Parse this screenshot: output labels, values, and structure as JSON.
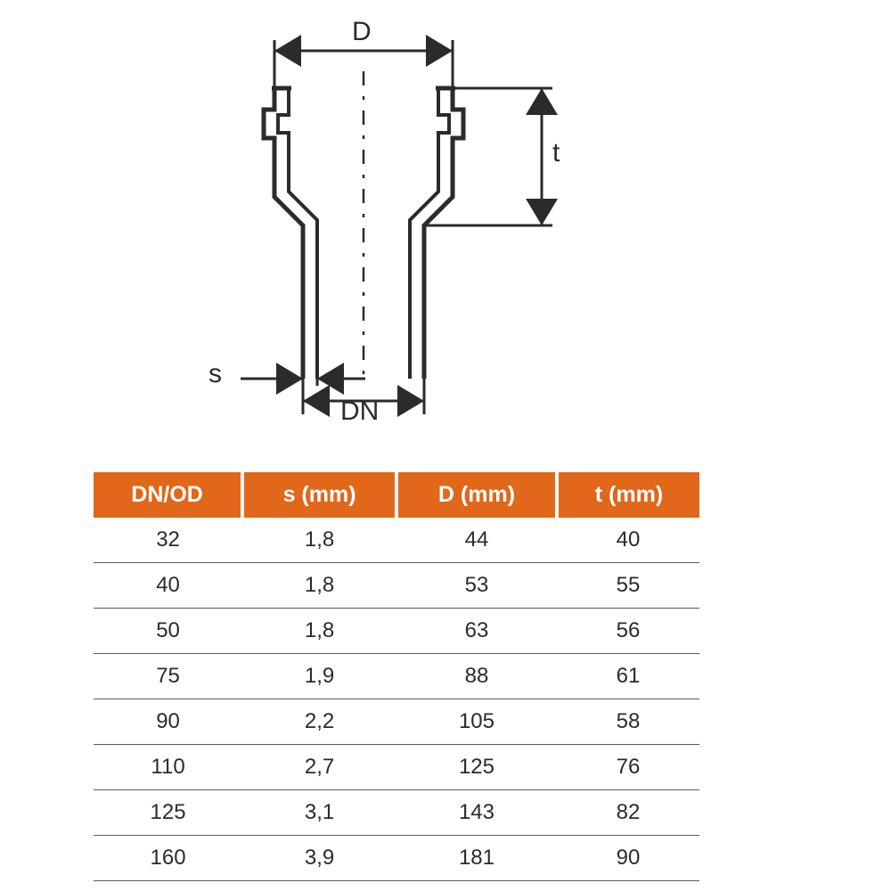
{
  "diagram": {
    "labels": {
      "D": "D",
      "t": "t",
      "s": "s",
      "DN": "DN"
    },
    "stroke_color": "#2b2b2b",
    "stroke_width_main": 5,
    "stroke_width_dim": 3,
    "dash_pattern": "14 10"
  },
  "table": {
    "type": "table",
    "header_bg": "#e1671b",
    "header_text_color": "#ffffff",
    "row_border_color": "#5a5a5a",
    "cell_text_color": "#2b2b2b",
    "header_fontsize": 25,
    "cell_fontsize": 24,
    "columns": [
      "DN/OD",
      "s (mm)",
      "D (mm)",
      "t (mm)"
    ],
    "rows": [
      [
        "32",
        "1,8",
        "44",
        "40"
      ],
      [
        "40",
        "1,8",
        "53",
        "55"
      ],
      [
        "50",
        "1,8",
        "63",
        "56"
      ],
      [
        "75",
        "1,9",
        "88",
        "61"
      ],
      [
        "90",
        "2,2",
        "105",
        "58"
      ],
      [
        "110",
        "2,7",
        "125",
        "76"
      ],
      [
        "125",
        "3,1",
        "143",
        "82"
      ],
      [
        "160",
        "3,9",
        "181",
        "90"
      ]
    ]
  }
}
